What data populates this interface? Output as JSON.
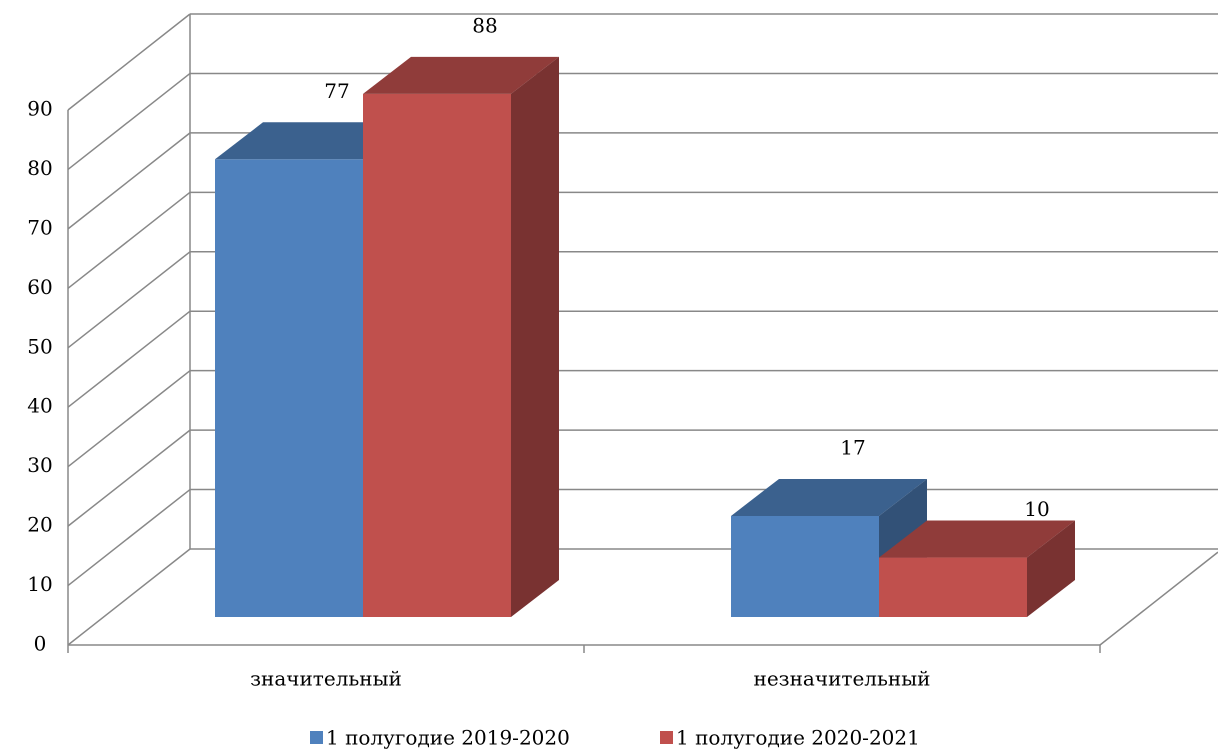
{
  "chart_data": {
    "type": "bar3d",
    "categories": [
      "значительный",
      "незначительный"
    ],
    "series": [
      {
        "name": "1 полугодие 2019-2020",
        "color": "#4f81bd",
        "values": [
          77,
          17
        ]
      },
      {
        "name": "1 полугодие 2020-2021",
        "color": "#c0504d",
        "values": [
          88,
          10
        ]
      }
    ],
    "ylim": [
      0,
      90
    ],
    "yticks": [
      0,
      10,
      20,
      30,
      40,
      50,
      60,
      70,
      80,
      90
    ],
    "grid": true,
    "legend": "bottom"
  }
}
